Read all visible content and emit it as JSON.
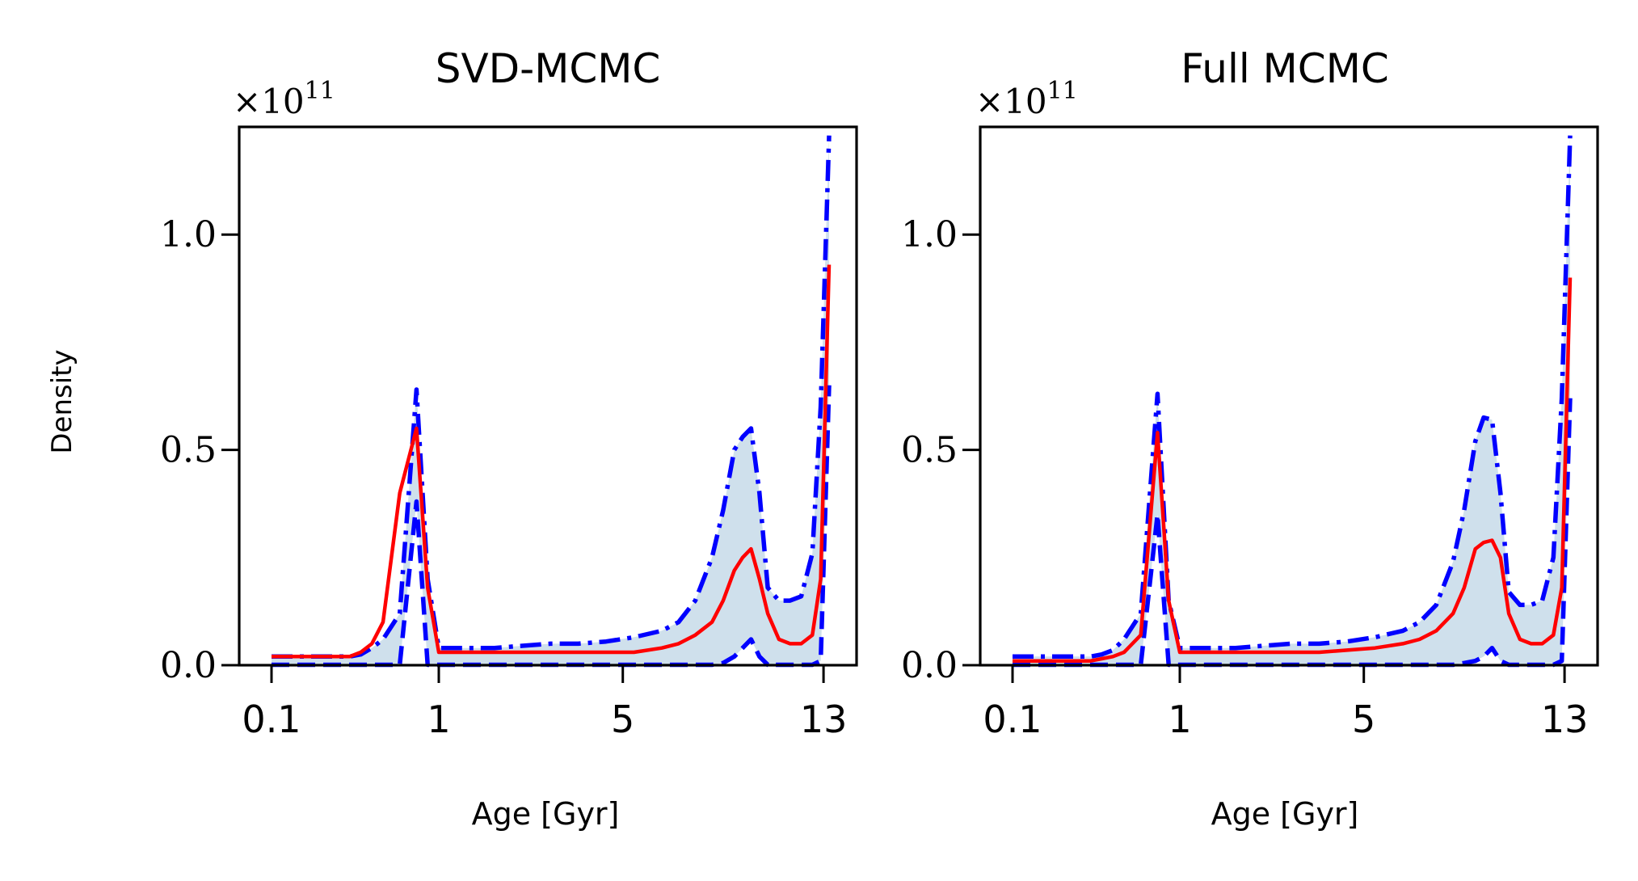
{
  "figure": {
    "ylabel": "Density",
    "offset_base": "×10",
    "offset_exp": "11"
  },
  "chart_data": [
    {
      "type": "line",
      "title": "SVD-MCMC",
      "xlabel": "Age [Gyr]",
      "ylabel": "Density",
      "y_scale_factor": "1e11",
      "x_ticks": [
        "0.1",
        "1",
        "5",
        "13"
      ],
      "y_ticks": [
        "0.0",
        "0.5",
        "1.0"
      ],
      "ylim": [
        0,
        1.25
      ],
      "grid": false,
      "colors": {
        "median": "#ff0000",
        "bounds": "#0000ff",
        "band": "#cfe0ec"
      },
      "series": [
        {
          "x": [
            0,
            0.02,
            0.04,
            0.06,
            0.08,
            0.1,
            0.12,
            0.14,
            0.16,
            0.18,
            0.2,
            0.23,
            0.26,
            0.28,
            0.3,
            0.31,
            0.32,
            0.33,
            0.34,
            0.36,
            0.4,
            0.45,
            0.5,
            0.55,
            0.6,
            0.65,
            0.7,
            0.73,
            0.76,
            0.79,
            0.81,
            0.83,
            0.845,
            0.86,
            0.875,
            0.89,
            0.91,
            0.93,
            0.95,
            0.97,
            0.985,
            1
          ],
          "values": [
            0.02,
            0.02,
            0.02,
            0.02,
            0.02,
            0.02,
            0.02,
            0.02,
            0.03,
            0.05,
            0.1,
            0.4,
            0.55,
            0.18,
            0.03,
            0.03,
            0.03,
            0.03,
            0.03,
            0.03,
            0.03,
            0.03,
            0.03,
            0.03,
            0.03,
            0.03,
            0.04,
            0.05,
            0.07,
            0.1,
            0.15,
            0.22,
            0.25,
            0.27,
            0.2,
            0.12,
            0.06,
            0.05,
            0.05,
            0.07,
            0.2,
            0.93
          ]
        },
        {
          "x": [
            0,
            0.02,
            0.04,
            0.06,
            0.08,
            0.1,
            0.12,
            0.14,
            0.16,
            0.18,
            0.2,
            0.23,
            0.26,
            0.28,
            0.3,
            0.31,
            0.32,
            0.33,
            0.34,
            0.36,
            0.4,
            0.45,
            0.5,
            0.55,
            0.6,
            0.65,
            0.7,
            0.73,
            0.76,
            0.79,
            0.81,
            0.83,
            0.845,
            0.86,
            0.875,
            0.89,
            0.91,
            0.93,
            0.95,
            0.97,
            0.985,
            1
          ],
          "values": [
            0.02,
            0.02,
            0.02,
            0.02,
            0.02,
            0.02,
            0.02,
            0.02,
            0.025,
            0.04,
            0.06,
            0.12,
            0.64,
            0.2,
            0.04,
            0.04,
            0.04,
            0.04,
            0.04,
            0.04,
            0.04,
            0.045,
            0.05,
            0.05,
            0.055,
            0.065,
            0.08,
            0.1,
            0.15,
            0.25,
            0.36,
            0.5,
            0.53,
            0.55,
            0.4,
            0.18,
            0.15,
            0.15,
            0.16,
            0.26,
            0.6,
            1.23
          ]
        },
        {
          "x": [
            0,
            0.02,
            0.04,
            0.06,
            0.08,
            0.1,
            0.12,
            0.14,
            0.16,
            0.18,
            0.2,
            0.23,
            0.26,
            0.28,
            0.3,
            0.31,
            0.32,
            0.33,
            0.34,
            0.36,
            0.4,
            0.45,
            0.5,
            0.55,
            0.6,
            0.65,
            0.7,
            0.73,
            0.76,
            0.79,
            0.81,
            0.83,
            0.845,
            0.86,
            0.875,
            0.89,
            0.91,
            0.93,
            0.95,
            0.97,
            0.985,
            1
          ],
          "values": [
            0.001,
            0.001,
            0.001,
            0.001,
            0.001,
            0.001,
            0.001,
            0.001,
            0.001,
            0.001,
            0.001,
            0.001,
            0.38,
            0.001,
            0.001,
            0.001,
            0.001,
            0.001,
            0.001,
            0.001,
            0.001,
            0.001,
            0.001,
            0.001,
            0.001,
            0.001,
            0.001,
            0.001,
            0.001,
            0.001,
            0.005,
            0.02,
            0.04,
            0.06,
            0.02,
            0.001,
            0.001,
            0.001,
            0.001,
            0.001,
            0.01,
            0.65
          ]
        }
      ]
    },
    {
      "type": "line",
      "title": "Full MCMC",
      "xlabel": "Age [Gyr]",
      "y_scale_factor": "1e11",
      "x_ticks": [
        "0.1",
        "1",
        "5",
        "13"
      ],
      "y_ticks": [
        "0.0",
        "0.5",
        "1.0"
      ],
      "ylim": [
        0,
        1.25
      ],
      "grid": false,
      "colors": {
        "median": "#ff0000",
        "bounds": "#0000ff",
        "band": "#cfe0ec"
      },
      "series": [
        {
          "x": [
            0,
            0.02,
            0.04,
            0.06,
            0.08,
            0.1,
            0.12,
            0.14,
            0.16,
            0.18,
            0.2,
            0.23,
            0.26,
            0.28,
            0.3,
            0.31,
            0.32,
            0.33,
            0.34,
            0.36,
            0.4,
            0.45,
            0.5,
            0.55,
            0.6,
            0.65,
            0.7,
            0.73,
            0.76,
            0.79,
            0.81,
            0.83,
            0.845,
            0.86,
            0.875,
            0.89,
            0.91,
            0.93,
            0.95,
            0.97,
            0.985,
            1
          ],
          "values": [
            0.01,
            0.01,
            0.01,
            0.01,
            0.01,
            0.01,
            0.01,
            0.01,
            0.015,
            0.02,
            0.03,
            0.07,
            0.54,
            0.15,
            0.03,
            0.03,
            0.03,
            0.03,
            0.03,
            0.03,
            0.03,
            0.03,
            0.03,
            0.03,
            0.035,
            0.04,
            0.05,
            0.06,
            0.08,
            0.12,
            0.18,
            0.27,
            0.285,
            0.29,
            0.25,
            0.12,
            0.06,
            0.05,
            0.05,
            0.07,
            0.18,
            0.9
          ]
        },
        {
          "x": [
            0,
            0.02,
            0.04,
            0.06,
            0.08,
            0.1,
            0.12,
            0.14,
            0.16,
            0.18,
            0.2,
            0.23,
            0.26,
            0.28,
            0.3,
            0.31,
            0.32,
            0.33,
            0.34,
            0.36,
            0.4,
            0.45,
            0.5,
            0.55,
            0.6,
            0.65,
            0.7,
            0.73,
            0.76,
            0.79,
            0.81,
            0.83,
            0.845,
            0.86,
            0.875,
            0.89,
            0.91,
            0.93,
            0.95,
            0.97,
            0.985,
            1
          ],
          "values": [
            0.02,
            0.02,
            0.02,
            0.02,
            0.02,
            0.02,
            0.02,
            0.02,
            0.025,
            0.035,
            0.06,
            0.12,
            0.63,
            0.15,
            0.04,
            0.04,
            0.04,
            0.04,
            0.04,
            0.04,
            0.04,
            0.045,
            0.05,
            0.05,
            0.055,
            0.065,
            0.08,
            0.1,
            0.14,
            0.24,
            0.36,
            0.52,
            0.575,
            0.57,
            0.4,
            0.17,
            0.14,
            0.14,
            0.15,
            0.25,
            0.62,
            1.23
          ]
        },
        {
          "x": [
            0,
            0.02,
            0.04,
            0.06,
            0.08,
            0.1,
            0.12,
            0.14,
            0.16,
            0.18,
            0.2,
            0.23,
            0.26,
            0.28,
            0.3,
            0.31,
            0.32,
            0.33,
            0.34,
            0.36,
            0.4,
            0.45,
            0.5,
            0.55,
            0.6,
            0.65,
            0.7,
            0.73,
            0.76,
            0.79,
            0.81,
            0.83,
            0.845,
            0.86,
            0.875,
            0.89,
            0.91,
            0.93,
            0.95,
            0.97,
            0.985,
            1
          ],
          "values": [
            0.001,
            0.001,
            0.001,
            0.001,
            0.001,
            0.001,
            0.001,
            0.001,
            0.001,
            0.001,
            0.001,
            0.001,
            0.35,
            0.001,
            0.001,
            0.001,
            0.001,
            0.001,
            0.001,
            0.001,
            0.001,
            0.001,
            0.001,
            0.001,
            0.001,
            0.001,
            0.001,
            0.001,
            0.001,
            0.001,
            0.005,
            0.01,
            0.02,
            0.04,
            0.01,
            0.001,
            0.001,
            0.001,
            0.001,
            0.001,
            0.01,
            0.62
          ]
        }
      ]
    }
  ]
}
